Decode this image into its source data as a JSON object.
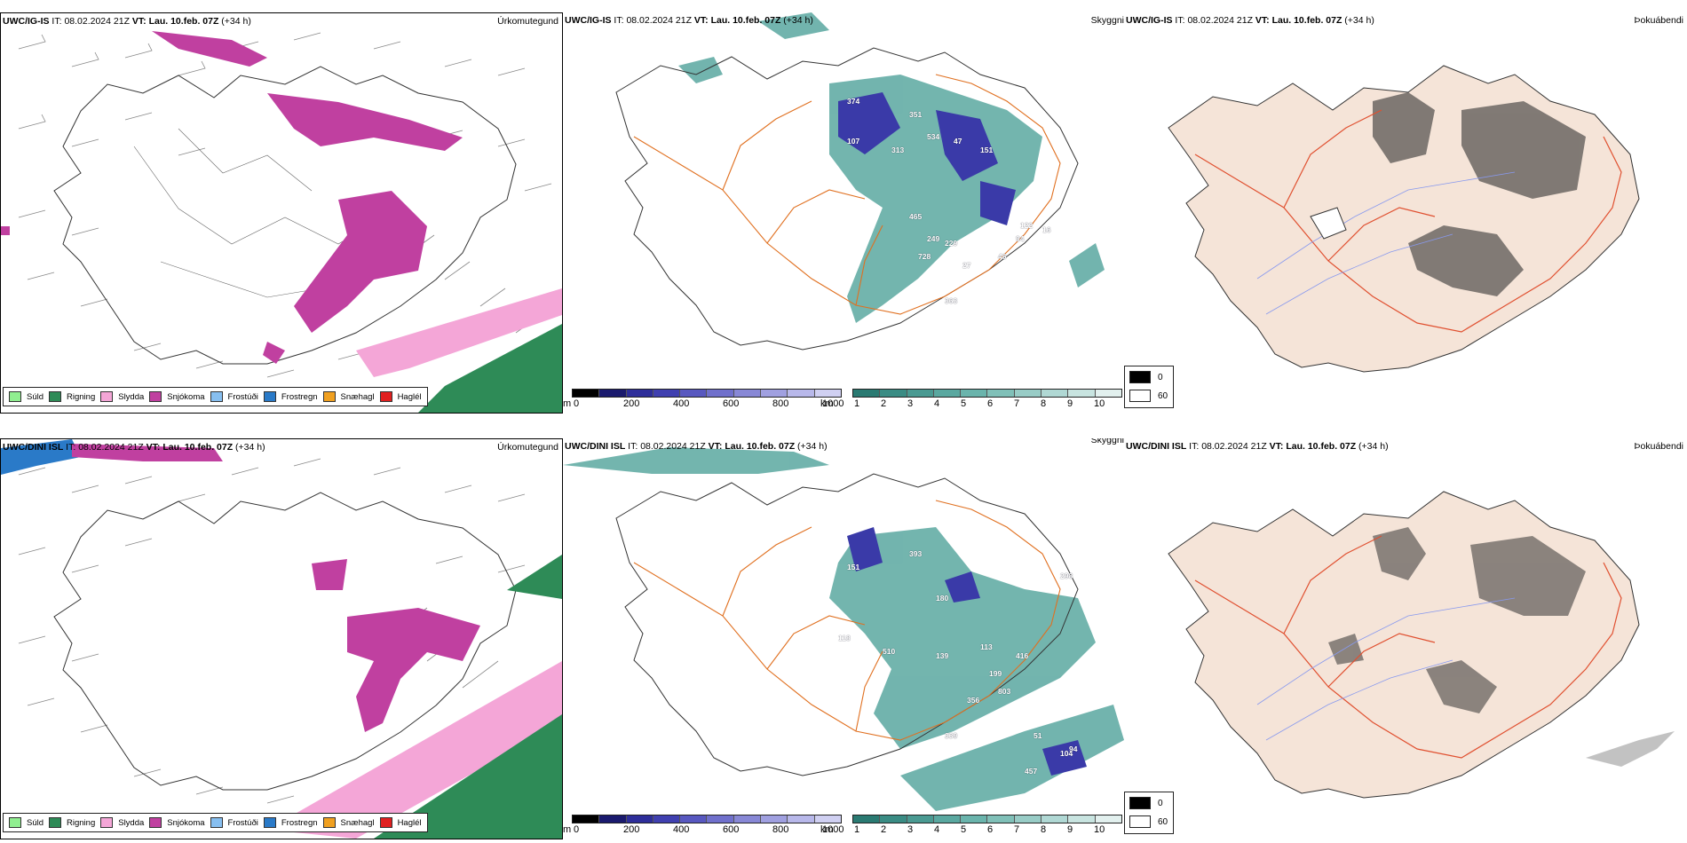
{
  "rows": [
    {
      "id": "top",
      "model": "UWC/IG-IS",
      "it_label": "IT:",
      "it_value": "08.02.2024 21Z",
      "vt_label": "VT:",
      "vt_value": "Lau. 10.feb. 07Z",
      "lead": "(+34 h)",
      "skyggni_labels": [
        "374",
        "351",
        "534",
        "107",
        "313",
        "47",
        "151",
        "465",
        "249",
        "229",
        "728",
        "27",
        "46",
        "94",
        "122",
        "16",
        "363"
      ]
    },
    {
      "id": "bottom",
      "model": "UWC/DINI ISL",
      "it_label": "IT:",
      "it_value": "08.02.2024 21Z",
      "vt_label": "VT:",
      "vt_value": "Lau. 10.feb. 07Z",
      "lead": "(+34 h)",
      "skyggni_labels": [
        "393",
        "151",
        "180",
        "118",
        "510",
        "139",
        "113",
        "416",
        "199",
        "803",
        "356",
        "339",
        "51",
        "104",
        "94",
        "457",
        "298"
      ]
    }
  ],
  "panel_titles": {
    "precip": "Úrkomutegund",
    "visibility": "Skyggni",
    "fog": "Þokuábendi"
  },
  "precip_legend": [
    {
      "label": "Súld",
      "color": "#90ee90"
    },
    {
      "label": "Rigning",
      "color": "#2e8b57"
    },
    {
      "label": "Slydda",
      "color": "#f4a6d7"
    },
    {
      "label": "Snjókoma",
      "color": "#c040a0"
    },
    {
      "label": "Frostúði",
      "color": "#87bff0"
    },
    {
      "label": "Frostregn",
      "color": "#2a7ac8"
    },
    {
      "label": "Snæhagl",
      "color": "#f0a020"
    },
    {
      "label": "Haglél",
      "color": "#e02020"
    }
  ],
  "visibility_scale": {
    "m_unit": "m",
    "m_ticks": [
      "0",
      "200",
      "400",
      "600",
      "800",
      "1000"
    ],
    "km_unit": "km",
    "km_ticks": [
      "1",
      "2",
      "3",
      "4",
      "5",
      "6",
      "7",
      "8",
      "9",
      "10"
    ],
    "m_colors": [
      "#000000",
      "#1a1a6e",
      "#2e2e9a",
      "#4040b0",
      "#5858c0",
      "#7070cc",
      "#8888d6",
      "#a0a0e0",
      "#b8b8ea",
      "#d0d0f2"
    ],
    "km_colors": [
      "#2a7a72",
      "#3a8c84",
      "#4a9a92",
      "#5aa8a0",
      "#6ab4ac",
      "#80c0b8",
      "#98ccc6",
      "#b0d8d4",
      "#c8e4e0",
      "#e2f0ee"
    ]
  },
  "fog_legend": [
    {
      "value": "0",
      "color": "#000000"
    },
    {
      "value": "60",
      "color": "#ffffff"
    }
  ],
  "colors": {
    "roads": "#e07020",
    "fog_land": "#f5e4d8",
    "fog_roads": "#e05030",
    "rivers": "#8899ee"
  }
}
